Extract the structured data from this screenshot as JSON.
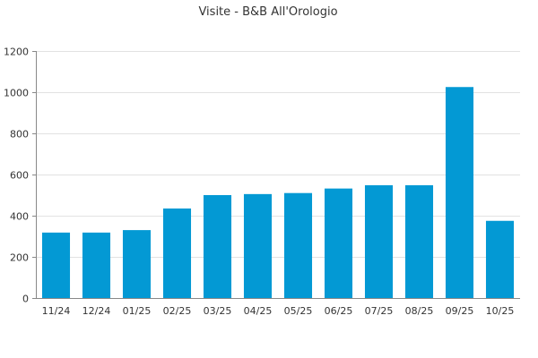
{
  "chart_data": {
    "type": "bar",
    "title": "Visite - B&B All'Orologio",
    "xlabel": "",
    "ylabel": "",
    "categories": [
      "11/24",
      "12/24",
      "01/25",
      "02/25",
      "03/25",
      "04/25",
      "05/25",
      "06/25",
      "07/25",
      "08/25",
      "09/25",
      "10/25"
    ],
    "values": [
      318,
      318,
      330,
      435,
      500,
      505,
      510,
      532,
      548,
      548,
      1025,
      375
    ],
    "ylim": [
      0,
      1200
    ],
    "yticks": [
      0,
      200,
      400,
      600,
      800,
      1000,
      1200
    ],
    "grid": true,
    "legend": "none",
    "bar_color": "#0399d4",
    "grid_color": "#e2e2e2",
    "axis_color": "#888888",
    "text_color": "#333333"
  }
}
